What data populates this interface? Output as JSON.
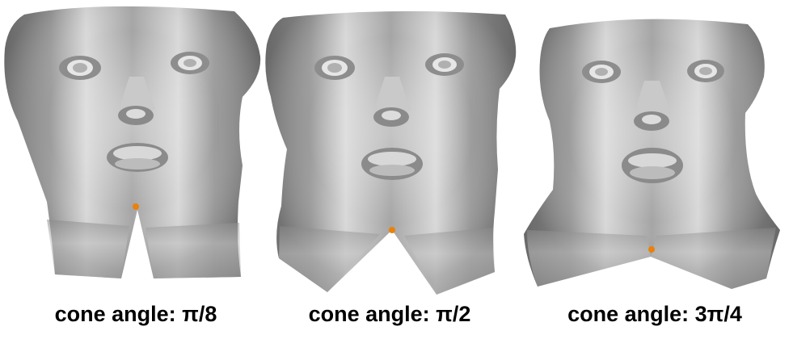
{
  "panels": [
    {
      "caption": "cone angle: π/8",
      "marker_color": "#e8820c"
    },
    {
      "caption": "cone angle: π/2",
      "marker_color": "#e8820c"
    },
    {
      "caption": "cone angle: 3π/4",
      "marker_color": "#e8820c"
    }
  ],
  "colors": {
    "surface_light": "#eeeeee",
    "surface_mid": "#a9a9a9",
    "surface_dark": "#6f6f6f",
    "marker": "#e8820c"
  }
}
